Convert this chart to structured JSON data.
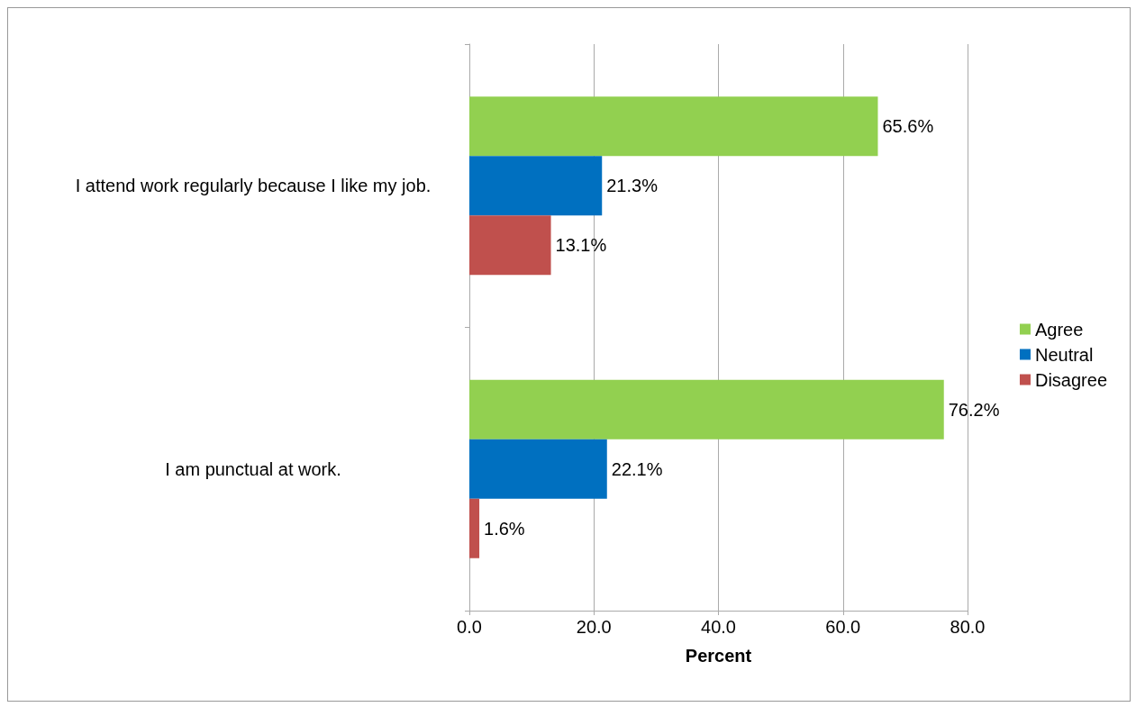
{
  "chart_data": {
    "type": "bar",
    "orientation": "horizontal",
    "xlabel": "Percent",
    "categories": [
      "I attend work regularly because I like my job.",
      "I am punctual at work."
    ],
    "series": [
      {
        "name": "Agree",
        "color": "#92d050",
        "values": [
          65.6,
          76.2
        ],
        "value_labels": [
          "65.6%",
          "76.2%"
        ]
      },
      {
        "name": "Neutral",
        "color": "#0070c0",
        "values": [
          21.3,
          22.1
        ],
        "value_labels": [
          "21.3%",
          "22.1%"
        ]
      },
      {
        "name": "Disagree",
        "color": "#c0504d",
        "values": [
          13.1,
          1.6
        ],
        "value_labels": [
          "13.1%",
          "1.6%"
        ]
      }
    ],
    "xlim": [
      0,
      80
    ],
    "xticks": [
      {
        "value": 0,
        "label": "0.0"
      },
      {
        "value": 20,
        "label": "20.0"
      },
      {
        "value": 40,
        "label": "40.0"
      },
      {
        "value": 60,
        "label": "60.0"
      },
      {
        "value": 80,
        "label": "80.0"
      }
    ],
    "grid": "x",
    "legend": "right"
  }
}
